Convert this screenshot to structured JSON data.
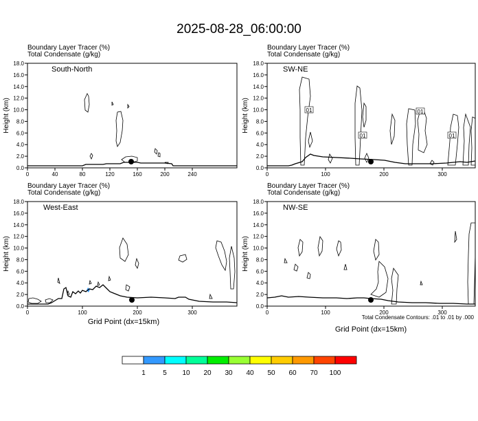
{
  "title": "2025-08-28_06:00:00",
  "field_labels": [
    "Boundary Layer Tracer   (%)",
    "Total Condensate   (g/kg)"
  ],
  "y_axis_label": "Height (km)",
  "x_axis_label": "Grid Point (dx=15km)",
  "contour_note": "Total Condensate Contours: .01 to .01 by .000",
  "contour_level_label": "01",
  "y_ticks": [
    "0.0",
    "2.0",
    "4.0",
    "6.0",
    "8.0",
    "10.0",
    "12.0",
    "14.0",
    "16.0",
    "18.0"
  ],
  "colorbar": {
    "colors": [
      "#ffffff",
      "#3399ff",
      "#00ffff",
      "#00ff99",
      "#00ee00",
      "#99ff33",
      "#ffff00",
      "#ffcc00",
      "#ff9900",
      "#ff4400",
      "#ff0000"
    ],
    "labels": [
      "1",
      "5",
      "10",
      "20",
      "30",
      "40",
      "50",
      "60",
      "70",
      "100"
    ]
  },
  "chart_data": [
    {
      "type": "contour",
      "panel_label": "South-North",
      "x_ticks": [
        "0",
        "40",
        "80",
        "120",
        "160",
        "200",
        "240"
      ],
      "xlim": [
        0,
        255
      ],
      "ylim": [
        0,
        18
      ],
      "marker": {
        "x": 126,
        "y": 1.0
      }
    },
    {
      "type": "contour",
      "panel_label": "SW-NE",
      "x_ticks": [
        "0",
        "100",
        "200",
        "300"
      ],
      "xlim": [
        0,
        355
      ],
      "ylim": [
        0,
        18
      ],
      "marker": {
        "x": 175,
        "y": 0.9
      }
    },
    {
      "type": "contour",
      "panel_label": "West-East",
      "x_ticks": [
        "0",
        "100",
        "200",
        "300"
      ],
      "xlim": [
        0,
        380
      ],
      "ylim": [
        0,
        18
      ],
      "marker": {
        "x": 191,
        "y": 1.0
      }
    },
    {
      "type": "contour",
      "panel_label": "NW-SE",
      "x_ticks": [
        "0",
        "100",
        "200",
        "300"
      ],
      "xlim": [
        0,
        355
      ],
      "ylim": [
        0,
        18
      ],
      "marker": {
        "x": 178,
        "y": 1.0
      }
    }
  ]
}
